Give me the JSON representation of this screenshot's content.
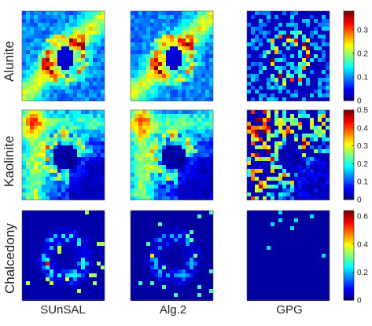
{
  "chart_data": {
    "type": "heatmap",
    "title": "",
    "columns": [
      "SUnSAL",
      "Alg.2",
      "GPG"
    ],
    "rows": [
      {
        "name": "Alunite",
        "colorbar": {
          "min": 0,
          "max": 0.38,
          "ticks": [
            "0",
            "0.1",
            "0.2",
            "0.3"
          ]
        }
      },
      {
        "name": "Kaolinite",
        "colorbar": {
          "min": 0,
          "max": 0.5,
          "ticks": [
            "0",
            "0.1",
            "0.2",
            "0.3",
            "0.4",
            "0.5"
          ]
        }
      },
      {
        "name": "Chalcedony",
        "colorbar": {
          "min": 0,
          "max": 0.64,
          "ticks": [
            "0",
            "0.2",
            "0.4",
            "0.6"
          ]
        }
      }
    ],
    "colormap": "jet",
    "colormap_colors": [
      "#00008f",
      "#0000ff",
      "#00ffff",
      "#ffff00",
      "#ff0000",
      "#800000"
    ]
  }
}
